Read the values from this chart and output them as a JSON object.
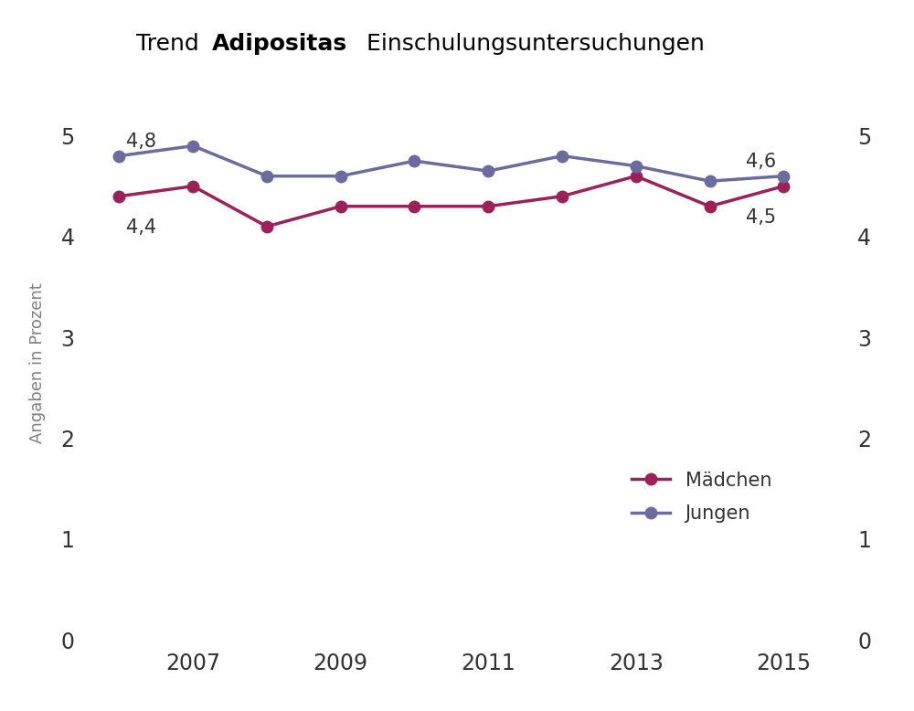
{
  "years": [
    2006,
    2007,
    2008,
    2009,
    2010,
    2011,
    2012,
    2013,
    2014,
    2015
  ],
  "maedchen": [
    4.4,
    4.5,
    4.1,
    4.3,
    4.3,
    4.3,
    4.4,
    4.6,
    4.3,
    4.5
  ],
  "jungen": [
    4.8,
    4.9,
    4.6,
    4.6,
    4.75,
    4.65,
    4.8,
    4.7,
    4.55,
    4.6
  ],
  "maedchen_color": "#9B2158",
  "jungen_color": "#6B6B9E",
  "ylabel": "Angaben in Prozent",
  "ylim": [
    0,
    5.5
  ],
  "yticks": [
    0,
    1,
    2,
    3,
    4,
    5
  ],
  "xlim": [
    2005.5,
    2015.9
  ],
  "xticks": [
    2007,
    2009,
    2011,
    2013,
    2015
  ],
  "annotation_first_maedchen": "4,4",
  "annotation_last_maedchen": "4,5",
  "annotation_first_jungen": "4,8",
  "annotation_last_jungen": "4,6",
  "legend_maedchen": "Mädchen",
  "legend_jungen": "Jungen",
  "marker_size": 9,
  "line_width": 2.5,
  "title_fontsize": 18,
  "label_fontsize": 13,
  "tick_fontsize": 17,
  "annotation_fontsize": 15,
  "ylabel_color": "#808080",
  "tick_color": "#333333",
  "background_color": "#ffffff"
}
